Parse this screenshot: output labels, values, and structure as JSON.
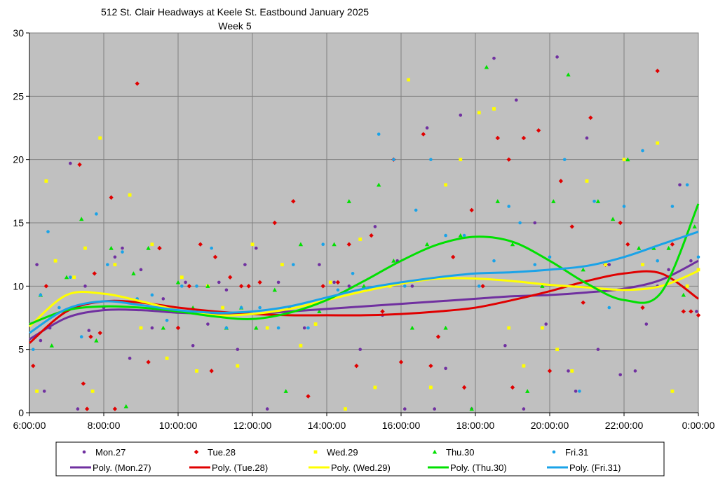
{
  "chart_data": {
    "type": "scatter",
    "title": "512 St. Clair Headways at Keele St. Eastbound January 2025",
    "subtitle": "Week 5",
    "xlabel": "",
    "ylabel": "",
    "x_ticks": [
      "6:00:00",
      "8:00:00",
      "10:00:00",
      "12:00:00",
      "14:00:00",
      "16:00:00",
      "18:00:00",
      "20:00:00",
      "22:00:00",
      "0:00:00"
    ],
    "xlim_hours": [
      6,
      24
    ],
    "ylim": [
      0,
      30
    ],
    "y_ticks": [
      "0",
      "5",
      "10",
      "15",
      "20",
      "25",
      "30"
    ],
    "grid": true,
    "legend_placement": "bottom",
    "colors": {
      "plot_bg": "#c0c0c0",
      "grid": "#808080",
      "Mon.27": "#7030a0",
      "Tue.28": "#e00000",
      "Wed.29": "#ffff00",
      "Thu.30": "#00e000",
      "Fri.31": "#1aa3e8"
    },
    "series": [
      {
        "name": "Mon.27",
        "marker": "circle",
        "color": "#7030a0",
        "x": [
          6.2,
          6.3,
          6.4,
          6.55,
          7.1,
          7.3,
          7.5,
          7.6,
          8.0,
          8.3,
          8.5,
          8.7,
          9.0,
          9.3,
          9.6,
          10.0,
          10.2,
          10.4,
          10.8,
          11.1,
          11.3,
          11.6,
          11.8,
          12.1,
          12.4,
          12.7,
          13.0,
          13.4,
          13.8,
          14.2,
          14.6,
          14.9,
          15.3,
          15.5,
          15.9,
          16.1,
          16.3,
          16.7,
          16.9,
          17.2,
          17.6,
          17.9,
          18.2,
          18.5,
          18.8,
          19.1,
          19.3,
          19.6,
          19.9,
          20.2,
          20.5,
          20.7,
          21.0,
          21.3,
          21.6,
          21.9,
          22.3,
          22.6,
          22.9,
          23.2,
          23.5,
          23.8,
          23.95
        ],
        "y": [
          11.7,
          5.7,
          1.7,
          6.7,
          19.7,
          0.3,
          10.0,
          6.5,
          8.3,
          12.3,
          13.0,
          4.3,
          11.3,
          6.7,
          9.0,
          6.7,
          10.3,
          5.3,
          7.0,
          10.3,
          9.7,
          5.0,
          11.7,
          13.0,
          0.3,
          10.3,
          8.3,
          6.7,
          11.7,
          10.3,
          10.0,
          5.0,
          14.7,
          7.7,
          12.0,
          0.3,
          10.0,
          22.5,
          0.3,
          3.5,
          23.5,
          0.3,
          10.0,
          28.0,
          5.3,
          24.7,
          0.3,
          15.0,
          7.0,
          28.1,
          3.3,
          1.7,
          21.7,
          5.0,
          11.7,
          3.0,
          3.3,
          7.0,
          10.0,
          11.3,
          18.0,
          12.0,
          8.0
        ]
      },
      {
        "name": "Tue.28",
        "marker": "diamond",
        "color": "#e00000",
        "x": [
          6.1,
          6.45,
          7.35,
          7.45,
          7.55,
          7.65,
          7.75,
          7.9,
          8.2,
          8.3,
          8.9,
          9.2,
          9.5,
          10.0,
          10.3,
          10.6,
          10.9,
          11.0,
          11.4,
          11.7,
          11.9,
          12.2,
          12.6,
          13.1,
          13.5,
          13.9,
          14.3,
          14.6,
          14.8,
          15.2,
          15.5,
          15.8,
          16.0,
          16.6,
          16.8,
          17.0,
          17.4,
          17.7,
          17.9,
          18.2,
          18.6,
          18.9,
          19.0,
          19.3,
          19.7,
          20.0,
          20.3,
          20.6,
          20.9,
          21.1,
          21.5,
          21.9,
          22.1,
          22.5,
          22.9,
          23.3,
          23.6,
          23.8,
          24.0
        ],
        "y": [
          3.7,
          10.0,
          19.6,
          2.3,
          0.3,
          6.0,
          11.0,
          6.3,
          17.0,
          0.3,
          26.0,
          4.0,
          13.0,
          6.7,
          10.0,
          13.3,
          3.3,
          12.3,
          10.7,
          10.0,
          10.0,
          10.3,
          15.0,
          16.7,
          1.3,
          10.0,
          10.3,
          13.3,
          3.7,
          14.0,
          8.0,
          20.0,
          4.0,
          22.0,
          3.7,
          6.0,
          12.3,
          2.0,
          16.0,
          10.0,
          21.7,
          20.0,
          2.0,
          21.7,
          22.3,
          3.3,
          18.3,
          14.7,
          8.7,
          23.3,
          11.7,
          15.0,
          13.3,
          8.3,
          27.0,
          13.3,
          8.0,
          8.0,
          7.7
        ]
      },
      {
        "name": "Wed.29",
        "marker": "square",
        "color": "#ffff00",
        "x": [
          6.2,
          6.45,
          6.7,
          7.2,
          7.5,
          7.7,
          7.9,
          8.3,
          8.7,
          9.0,
          9.3,
          9.7,
          10.1,
          10.5,
          10.8,
          11.2,
          11.6,
          12.0,
          12.4,
          12.8,
          13.3,
          13.7,
          14.1,
          14.5,
          14.9,
          15.3,
          15.7,
          16.2,
          16.8,
          17.2,
          17.6,
          18.1,
          18.5,
          18.9,
          19.3,
          19.8,
          20.2,
          20.6,
          21.0,
          21.5,
          22.0,
          22.5,
          22.9,
          23.3,
          23.7,
          24.0
        ],
        "y": [
          1.7,
          18.3,
          12.0,
          10.7,
          13.0,
          1.7,
          21.7,
          11.7,
          17.2,
          6.7,
          13.3,
          4.3,
          10.7,
          3.3,
          10.0,
          8.3,
          3.7,
          13.3,
          6.7,
          11.7,
          5.3,
          7.0,
          10.3,
          0.3,
          13.7,
          2.0,
          10.0,
          26.3,
          2.0,
          18.0,
          20.0,
          23.7,
          24.0,
          6.7,
          3.7,
          6.7,
          5.0,
          3.3,
          18.3,
          11.7,
          20.0,
          11.7,
          21.3,
          1.7,
          10.0,
          11.3
        ]
      },
      {
        "name": "Thu.30",
        "marker": "triangle",
        "color": "#00e000",
        "x": [
          6.3,
          6.6,
          7.0,
          7.4,
          7.8,
          8.2,
          8.6,
          8.8,
          9.2,
          9.6,
          10.0,
          10.4,
          10.8,
          11.3,
          11.7,
          12.1,
          12.6,
          12.9,
          13.3,
          13.8,
          14.2,
          14.6,
          15.0,
          15.4,
          15.8,
          16.3,
          16.7,
          17.2,
          17.6,
          17.9,
          18.3,
          18.6,
          19.0,
          19.4,
          19.8,
          20.1,
          20.5,
          20.9,
          21.3,
          21.7,
          22.1,
          22.4,
          22.8,
          23.2,
          23.6,
          23.9
        ],
        "y": [
          9.3,
          5.3,
          10.7,
          15.3,
          5.7,
          13.0,
          0.5,
          11.0,
          13.0,
          6.7,
          10.3,
          8.3,
          10.0,
          6.7,
          8.3,
          6.7,
          9.7,
          1.7,
          13.3,
          8.0,
          13.3,
          16.7,
          10.0,
          18.0,
          12.0,
          6.7,
          13.3,
          6.7,
          14.0,
          0.3,
          27.3,
          16.7,
          13.3,
          1.7,
          10.0,
          16.7,
          26.7,
          11.3,
          16.7,
          15.3,
          20.0,
          13.0,
          13.0,
          13.0,
          9.3,
          14.7
        ]
      },
      {
        "name": "Fri.31",
        "marker": "circle",
        "color": "#1aa3e8",
        "x": [
          6.1,
          6.3,
          6.5,
          6.8,
          7.1,
          7.4,
          7.8,
          8.1,
          8.5,
          8.9,
          9.3,
          9.7,
          10.1,
          10.5,
          10.9,
          11.3,
          11.7,
          12.2,
          12.7,
          13.1,
          13.5,
          13.9,
          14.3,
          14.7,
          15.1,
          15.4,
          15.8,
          16.1,
          16.4,
          16.8,
          17.2,
          17.7,
          18.1,
          18.5,
          18.9,
          19.2,
          19.6,
          20.0,
          20.4,
          20.8,
          21.2,
          21.6,
          22.0,
          22.5,
          22.9,
          23.3,
          23.7,
          24.0
        ],
        "y": [
          5.0,
          9.3,
          14.3,
          8.3,
          10.7,
          6.0,
          15.7,
          11.7,
          12.7,
          9.0,
          9.3,
          7.3,
          10.0,
          10.0,
          13.0,
          6.7,
          8.3,
          8.3,
          6.7,
          11.7,
          6.7,
          13.3,
          9.7,
          11.0,
          9.7,
          22.0,
          20.0,
          10.0,
          16.0,
          20.0,
          14.0,
          14.0,
          10.0,
          12.0,
          16.3,
          15.0,
          11.7,
          12.3,
          20.0,
          1.7,
          16.7,
          8.3,
          16.3,
          20.7,
          12.0,
          16.3,
          18.0,
          12.3
        ]
      }
    ],
    "trendlines": [
      {
        "name": "Poly. (Mon.27)",
        "color": "#7030a0",
        "x": [
          6,
          7,
          8,
          9,
          10,
          11,
          12,
          13,
          14,
          15,
          16,
          17,
          18,
          19,
          20,
          21,
          22,
          23,
          24
        ],
        "y": [
          5.8,
          7.5,
          8.1,
          8.1,
          7.9,
          7.8,
          7.8,
          8.0,
          8.2,
          8.4,
          8.6,
          8.8,
          9.0,
          9.2,
          9.3,
          9.5,
          9.8,
          10.5,
          12.0
        ]
      },
      {
        "name": "Poly. (Tue.28)",
        "color": "#e00000",
        "x": [
          6,
          7,
          8,
          9,
          10,
          11,
          12,
          13,
          14,
          15,
          16,
          17,
          18,
          19,
          20,
          21,
          22,
          23,
          24
        ],
        "y": [
          5.5,
          8.0,
          8.8,
          8.7,
          8.3,
          8.0,
          7.8,
          7.7,
          7.7,
          7.7,
          7.8,
          8.0,
          8.3,
          8.9,
          9.6,
          10.4,
          11.0,
          11.0,
          9.0
        ]
      },
      {
        "name": "Poly. (Wed.29)",
        "color": "#ffff00",
        "x": [
          6,
          7,
          8,
          9,
          10,
          11,
          12,
          13,
          14,
          15,
          16,
          17,
          18,
          19,
          20,
          21,
          22,
          23,
          24
        ],
        "y": [
          6.8,
          9.3,
          9.4,
          8.8,
          8.1,
          7.7,
          7.8,
          8.2,
          8.9,
          9.6,
          10.2,
          10.6,
          10.6,
          10.4,
          10.1,
          9.9,
          9.7,
          10.0,
          11.2
        ]
      },
      {
        "name": "Poly. (Thu.30)",
        "color": "#00e000",
        "x": [
          6,
          7,
          8,
          9,
          10,
          11,
          12,
          13,
          14,
          15,
          16,
          17,
          18,
          19,
          20,
          21,
          22,
          23,
          24
        ],
        "y": [
          7.0,
          8.1,
          8.4,
          8.3,
          8.0,
          7.6,
          7.4,
          7.9,
          8.9,
          10.4,
          12.0,
          13.3,
          13.9,
          13.5,
          12.0,
          10.2,
          8.9,
          9.5,
          16.5
        ]
      },
      {
        "name": "Poly. (Fri.31)",
        "color": "#1aa3e8",
        "x": [
          6,
          7,
          8,
          9,
          10,
          11,
          12,
          13,
          14,
          15,
          16,
          17,
          18,
          19,
          20,
          21,
          22,
          23,
          24
        ],
        "y": [
          6.3,
          8.2,
          8.8,
          8.5,
          8.1,
          7.9,
          8.0,
          8.4,
          9.1,
          9.8,
          10.3,
          10.7,
          11.0,
          11.1,
          11.3,
          11.6,
          12.3,
          13.3,
          14.3
        ]
      }
    ]
  }
}
